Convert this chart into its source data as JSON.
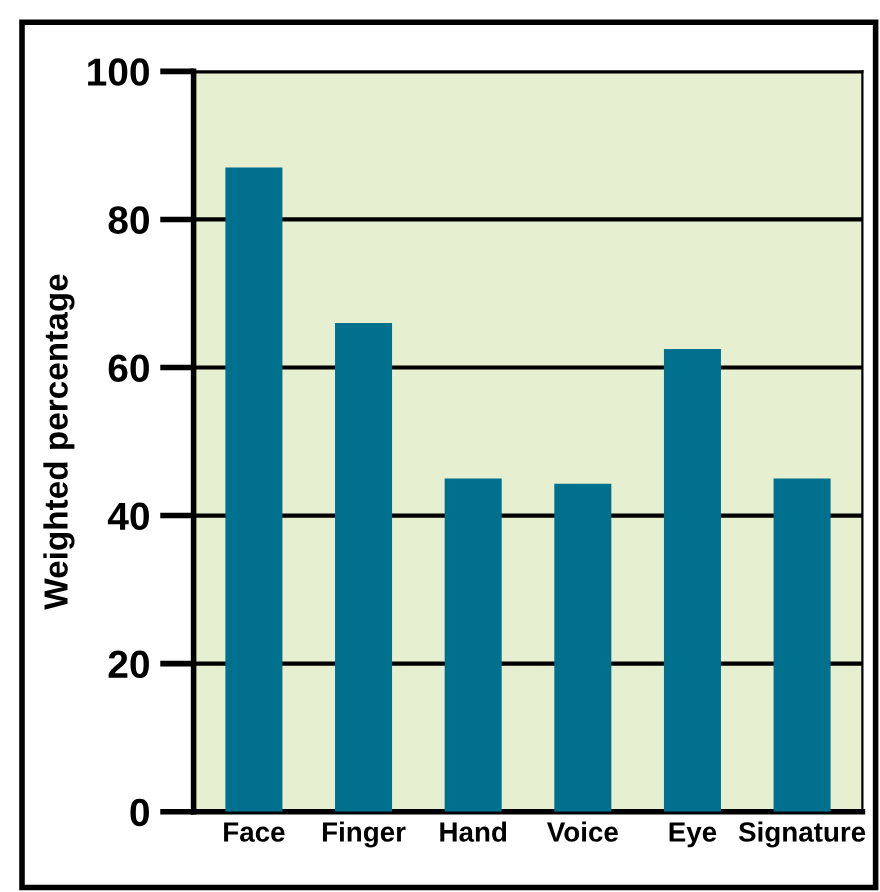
{
  "chart_data": {
    "type": "bar",
    "ylabel": "Weighted percentage",
    "categories": [
      "Face",
      "Finger",
      "Hand",
      "Voice",
      "Eye",
      "Signature"
    ],
    "values": [
      87,
      66,
      45,
      44.3,
      62.5,
      45
    ],
    "color": "#00708f",
    "ylim": [
      0,
      100
    ],
    "yticks": [
      0,
      20,
      40,
      60,
      80,
      100
    ],
    "grid": "y",
    "legend": false
  }
}
